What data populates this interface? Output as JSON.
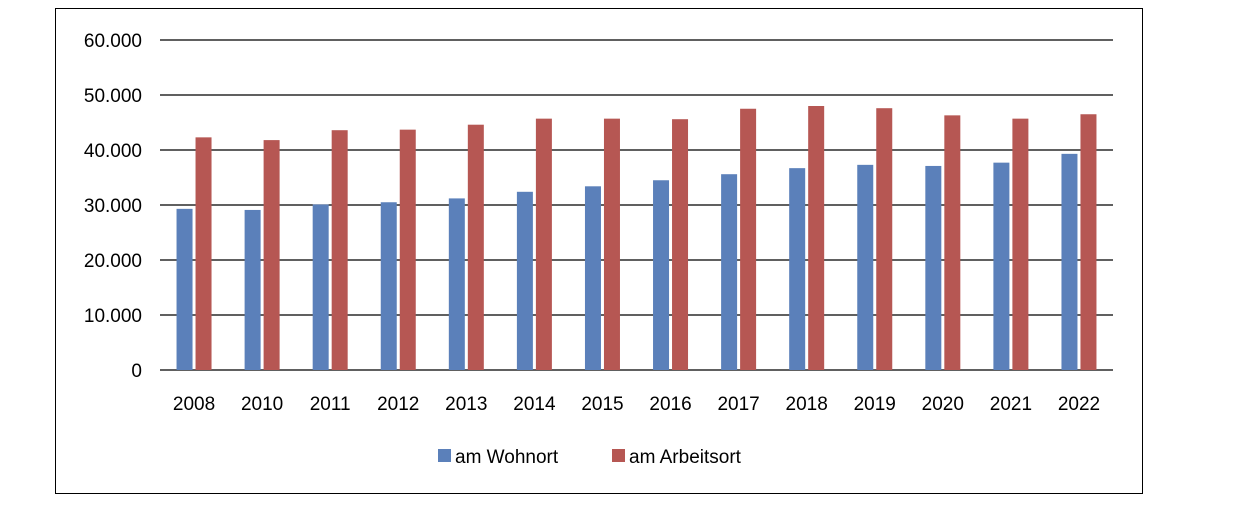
{
  "chart_data": {
    "type": "bar",
    "categories": [
      "2008",
      "2010",
      "2011",
      "2012",
      "2013",
      "2014",
      "2015",
      "2016",
      "2017",
      "2018",
      "2019",
      "2020",
      "2021",
      "2022"
    ],
    "series": [
      {
        "name": "am Wohnort",
        "color": "#5b80ba",
        "values": [
          29300,
          29100,
          30100,
          30500,
          31200,
          32400,
          33400,
          34500,
          35600,
          36700,
          37300,
          37100,
          37700,
          39300
        ]
      },
      {
        "name": "am Arbeitsort",
        "color": "#b65753",
        "values": [
          42300,
          41800,
          43600,
          43700,
          44600,
          45700,
          45700,
          45600,
          47500,
          48000,
          47600,
          46300,
          45700,
          46500
        ]
      }
    ],
    "ylim": [
      0,
      60000
    ],
    "yticks": [
      0,
      10000,
      20000,
      30000,
      40000,
      50000,
      60000
    ],
    "ytick_labels": [
      "0",
      "10.000",
      "20.000",
      "30.000",
      "40.000",
      "50.000",
      "60.000"
    ],
    "grid": true,
    "legend_position": "bottom",
    "title": "",
    "xlabel": "",
    "ylabel": ""
  }
}
